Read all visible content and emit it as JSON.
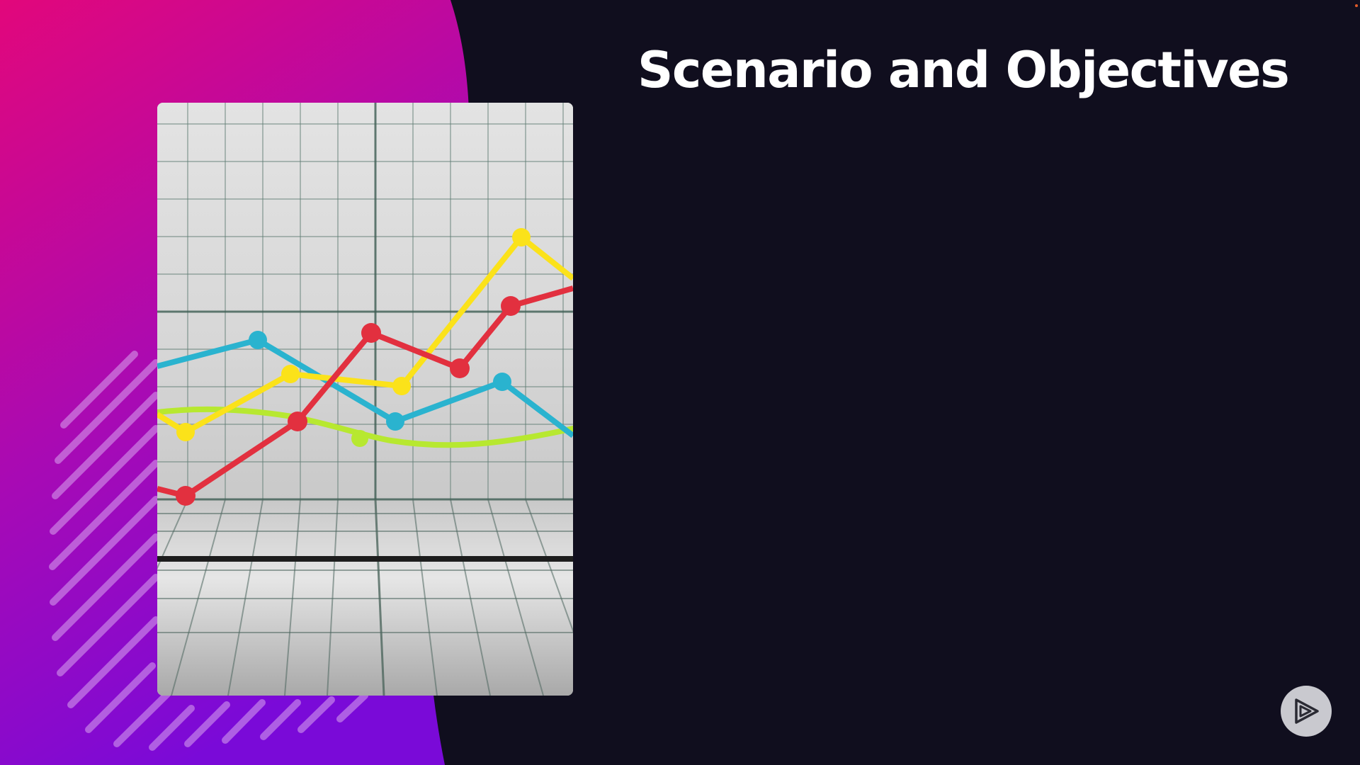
{
  "slide": {
    "title": "Scenario and Objectives"
  },
  "colors": {
    "background": "#100e1e",
    "gradient_top": "#e0077a",
    "gradient_bottom": "#7a0ad6",
    "series_red": "#e2303f",
    "series_yellow": "#fbe21a",
    "series_blue": "#2ab3cf",
    "series_green": "#b7e830"
  },
  "image": {
    "icon": "line-chart-illustration"
  },
  "player": {
    "icon": "pluralsight-play-icon"
  }
}
